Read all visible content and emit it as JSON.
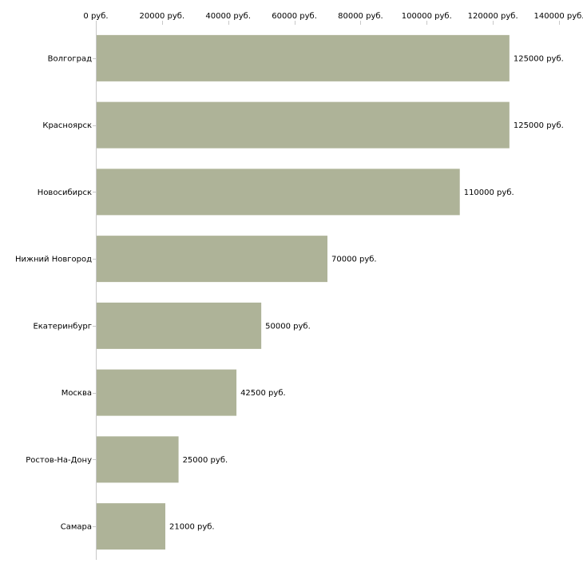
{
  "chart_data": {
    "type": "bar",
    "orientation": "horizontal",
    "title": "",
    "xlabel": "",
    "ylabel": "",
    "xlim": [
      0,
      140000
    ],
    "x_ticks": [
      0,
      20000,
      40000,
      60000,
      80000,
      100000,
      120000,
      140000
    ],
    "x_tick_labels": [
      "0 руб.",
      "20000 руб.",
      "40000 руб.",
      "60000 руб.",
      "80000 руб.",
      "100000 руб.",
      "120000 руб.",
      "140000 руб."
    ],
    "categories": [
      "Волгоград",
      "Красноярск",
      "Новосибирск",
      "Нижний Новгород",
      "Екатеринбург",
      "Москва",
      "Ростов-На-Дону",
      "Самара"
    ],
    "values": [
      125000,
      125000,
      110000,
      70000,
      50000,
      42500,
      25000,
      21000
    ],
    "value_labels": [
      "125000 руб.",
      "125000 руб.",
      "110000 руб.",
      "70000 руб.",
      "50000 руб.",
      "42500 руб.",
      "25000 руб.",
      "21000 руб."
    ],
    "grid": false,
    "legend": "none",
    "colors": {
      "bar": "#aeb398",
      "axis": "#c8c8c8",
      "text": "#000000"
    }
  }
}
